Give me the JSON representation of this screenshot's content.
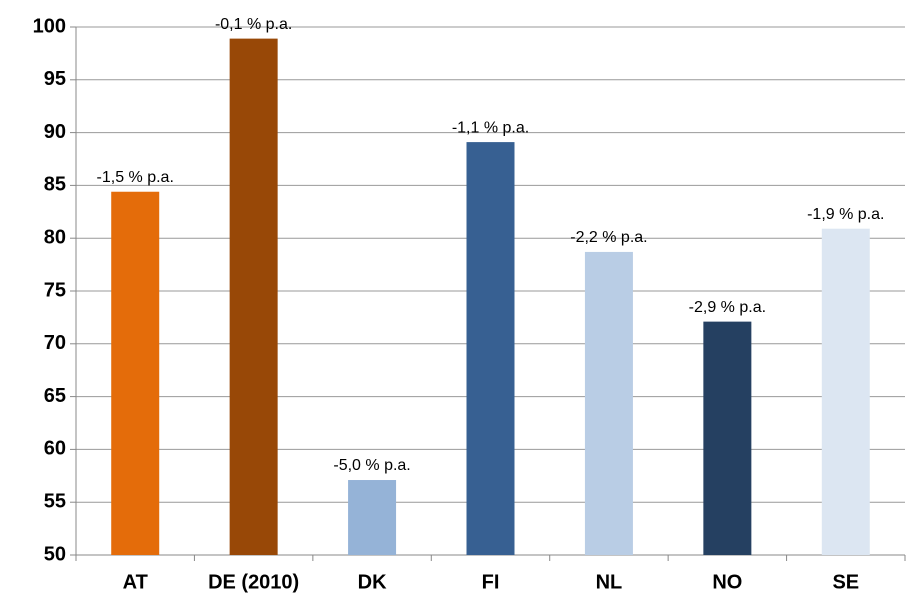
{
  "chart_data": {
    "type": "bar",
    "categories": [
      "AT",
      "DE (2010)",
      "DK",
      "FI",
      "NL",
      "NO",
      "SE"
    ],
    "values": [
      84.4,
      98.9,
      57.1,
      89.1,
      78.7,
      72.1,
      80.9
    ],
    "colors": [
      "#e46c0a",
      "#984807",
      "#95b3d7",
      "#376092",
      "#b9cde5",
      "#254061",
      "#dce6f2"
    ],
    "bar_annotations": [
      "-1,5 % p.a.",
      "-0,1 % p.a.",
      "-5,0 % p.a.",
      "-1,1 % p.a.",
      "-2,2 % p.a.",
      "-2,9 % p.a.",
      "-1,9 % p.a."
    ],
    "ylim": [
      50,
      100
    ],
    "yticks": [
      50,
      55,
      60,
      65,
      70,
      75,
      80,
      85,
      90,
      95,
      100
    ],
    "grid": true
  }
}
